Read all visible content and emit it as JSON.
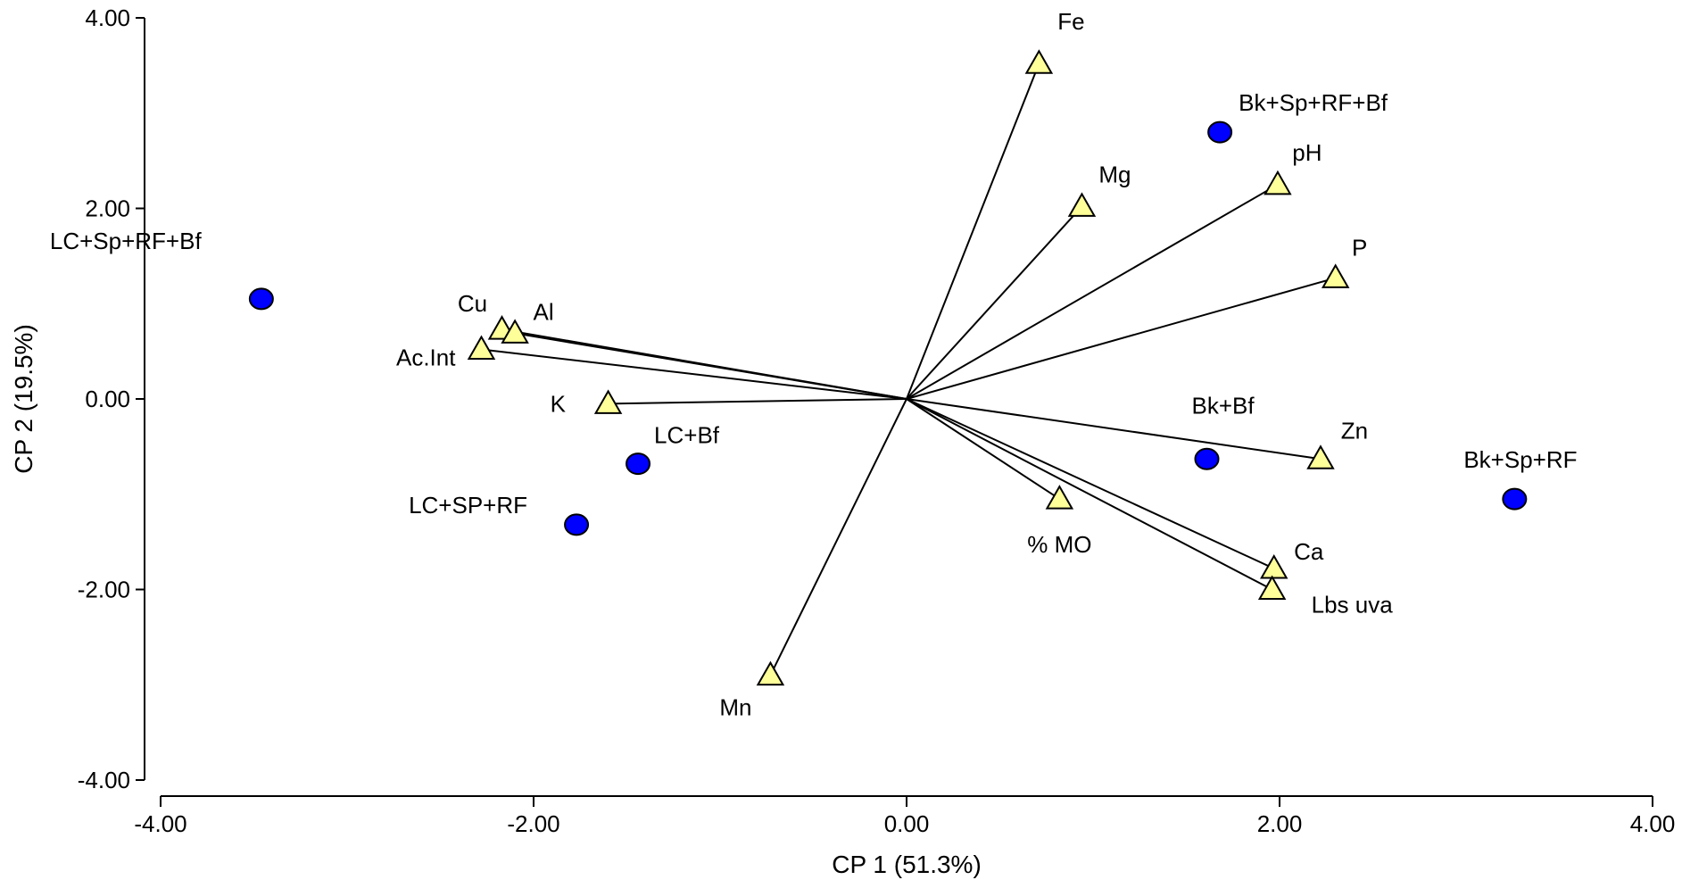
{
  "chart_data": {
    "type": "scatter",
    "subtype": "biplot",
    "title": "",
    "xlabel": "CP 1 (51.3%)",
    "ylabel": "CP 2 (19.5%)",
    "xlim": [
      -4,
      4
    ],
    "ylim": [
      -4,
      4
    ],
    "x_ticks": [
      -4,
      -2,
      0,
      2,
      4
    ],
    "y_ticks": [
      -4,
      -2,
      0,
      2,
      4
    ],
    "x_tick_labels": [
      "-4.00",
      "-2.00",
      "0.00",
      "2.00",
      "4.00"
    ],
    "y_tick_labels": [
      "-4.00",
      "-2.00",
      "0.00",
      "2.00",
      "4.00"
    ],
    "grid": false,
    "legend": "none",
    "colors": {
      "treatment_fill": "#0000ff",
      "variable_fill": "#ffff99",
      "stroke": "#000000"
    },
    "treatments": [
      {
        "label": "LC+Sp+RF+Bf",
        "x": -3.46,
        "y": 1.05
      },
      {
        "label": "LC+Bf",
        "x": -1.44,
        "y": -0.68
      },
      {
        "label": "LC+SP+RF",
        "x": -1.77,
        "y": -1.32
      },
      {
        "label": "Bk+Sp+RF+Bf",
        "x": 1.68,
        "y": 2.8
      },
      {
        "label": "Bk+Bf",
        "x": 1.61,
        "y": -0.63
      },
      {
        "label": "Bk+Sp+RF",
        "x": 3.26,
        "y": -1.05
      }
    ],
    "variables": [
      {
        "label": "Fe",
        "x": 0.71,
        "y": 3.52
      },
      {
        "label": "Mg",
        "x": 0.94,
        "y": 2.02
      },
      {
        "label": "pH",
        "x": 1.99,
        "y": 2.25
      },
      {
        "label": "P",
        "x": 2.3,
        "y": 1.27
      },
      {
        "label": "Cu",
        "x": -2.17,
        "y": 0.73
      },
      {
        "label": "Al",
        "x": -2.1,
        "y": 0.69
      },
      {
        "label": "Ac.Int",
        "x": -2.28,
        "y": 0.52
      },
      {
        "label": "K",
        "x": -1.6,
        "y": -0.05
      },
      {
        "label": "Zn",
        "x": 2.22,
        "y": -0.63
      },
      {
        "label": "% MO",
        "x": 0.82,
        "y": -1.05
      },
      {
        "label": "Ca",
        "x": 1.97,
        "y": -1.78
      },
      {
        "label": "Lbs uva",
        "x": 1.96,
        "y": -2.0
      },
      {
        "label": "Mn",
        "x": -0.73,
        "y": -2.9
      }
    ]
  }
}
